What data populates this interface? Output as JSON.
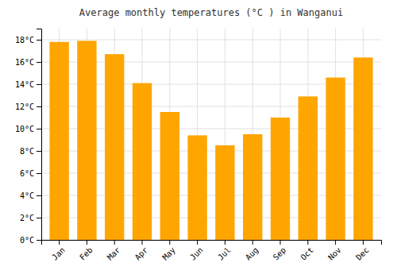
{
  "chart_data": {
    "type": "bar",
    "title": "Average monthly temperatures (°C ) in Wanganui",
    "categories": [
      "Jan",
      "Feb",
      "Mar",
      "Apr",
      "May",
      "Jun",
      "Jul",
      "Aug",
      "Sep",
      "Oct",
      "Nov",
      "Dec"
    ],
    "values": [
      17.8,
      17.9,
      16.7,
      14.1,
      11.5,
      9.4,
      8.5,
      9.5,
      11.0,
      12.9,
      14.6,
      16.4
    ],
    "color": "#FFA500",
    "ylim": [
      0,
      19
    ],
    "yticks": [
      {
        "value": 0,
        "label": "0°C"
      },
      {
        "value": 2,
        "label": "2°C"
      },
      {
        "value": 4,
        "label": "4°C"
      },
      {
        "value": 6,
        "label": "6°C"
      },
      {
        "value": 8,
        "label": "8°C"
      },
      {
        "value": 10,
        "label": "10°C"
      },
      {
        "value": 12,
        "label": "12°C"
      },
      {
        "value": 14,
        "label": "14°C"
      },
      {
        "value": 16,
        "label": "16°C"
      },
      {
        "value": 18,
        "label": "18°C"
      }
    ],
    "grid": true
  }
}
